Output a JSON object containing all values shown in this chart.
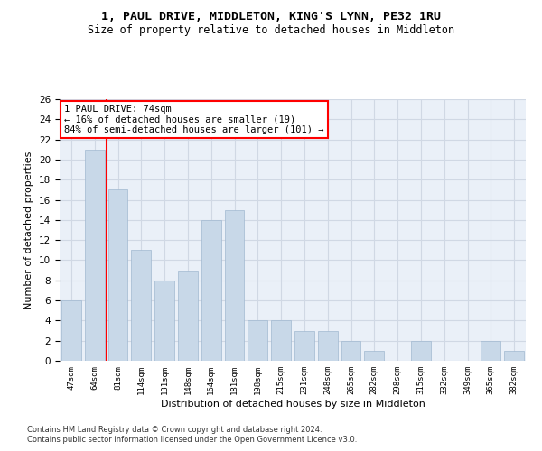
{
  "title1": "1, PAUL DRIVE, MIDDLETON, KING'S LYNN, PE32 1RU",
  "title2": "Size of property relative to detached houses in Middleton",
  "xlabel": "Distribution of detached houses by size in Middleton",
  "ylabel": "Number of detached properties",
  "categories": [
    "47sqm",
    "64sqm",
    "81sqm",
    "114sqm",
    "131sqm",
    "148sqm",
    "164sqm",
    "181sqm",
    "198sqm",
    "215sqm",
    "231sqm",
    "248sqm",
    "265sqm",
    "282sqm",
    "298sqm",
    "315sqm",
    "332sqm",
    "349sqm",
    "365sqm",
    "382sqm"
  ],
  "values": [
    6,
    21,
    17,
    11,
    8,
    9,
    14,
    15,
    4,
    4,
    3,
    3,
    2,
    1,
    0,
    2,
    0,
    0,
    2,
    1
  ],
  "bar_color": "#c8d8e8",
  "bar_edgecolor": "#a0b8d0",
  "redline_x": 1.5,
  "annotation_text": "1 PAUL DRIVE: 74sqm\n← 16% of detached houses are smaller (19)\n84% of semi-detached houses are larger (101) →",
  "annotation_box_color": "white",
  "annotation_box_edgecolor": "red",
  "redline_color": "red",
  "ylim": [
    0,
    26
  ],
  "yticks": [
    0,
    2,
    4,
    6,
    8,
    10,
    12,
    14,
    16,
    18,
    20,
    22,
    24,
    26
  ],
  "grid_color": "#d0d8e4",
  "bg_color": "#eaf0f8",
  "footer1": "Contains HM Land Registry data © Crown copyright and database right 2024.",
  "footer2": "Contains public sector information licensed under the Open Government Licence v3.0.",
  "title1_fontsize": 9.5,
  "title2_fontsize": 8.5,
  "xlabel_fontsize": 8,
  "ylabel_fontsize": 8
}
